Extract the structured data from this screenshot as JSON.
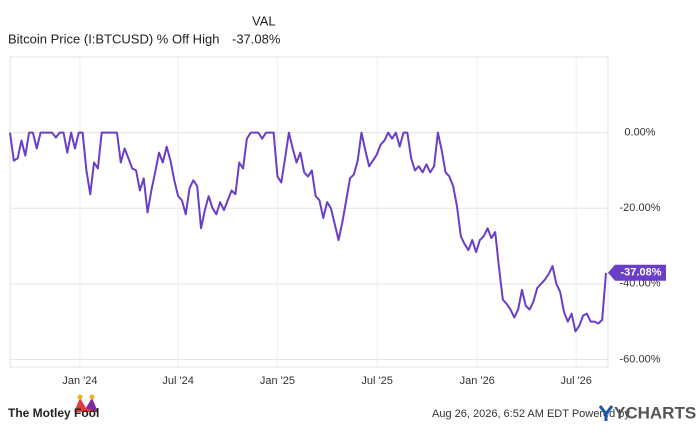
{
  "legend": {
    "header": "VAL",
    "value": "-37.08%"
  },
  "footer": {
    "brand": "The Motley Fool",
    "timestamp": "Aug 26, 2026, 6:52 AM EDT Powered by",
    "source": "YCHARTS"
  },
  "chart_data": {
    "type": "line",
    "xlim": [
      0,
      156
    ],
    "xticks": [
      {
        "value": 18.3,
        "label": "Jan '24"
      },
      {
        "value": 44,
        "label": "Jul '24"
      },
      {
        "value": 70,
        "label": "Jan '25"
      },
      {
        "value": 96.1,
        "label": "Jul '25"
      },
      {
        "value": 122.3,
        "label": "Jan '26"
      },
      {
        "value": 148.2,
        "label": "Jul '26"
      }
    ],
    "ylim": [
      -62,
      20
    ],
    "yticks": [
      {
        "value": 0,
        "label": "0.00%"
      },
      {
        "value": -20,
        "label": "-20.00%"
      },
      {
        "value": -40,
        "label": "-40.00%"
      },
      {
        "value": -60,
        "label": "-60.00%"
      }
    ],
    "grid": true,
    "series": [
      {
        "name": "Bitcoin Price (I:BTCUSD) % Off High",
        "color": "#6a3ec8",
        "end_label": "-37.08%",
        "values": [
          0,
          -7.4,
          -6.8,
          -2.1,
          -6.1,
          0,
          0,
          -4.2,
          0,
          0,
          0,
          0,
          -1.3,
          0,
          0,
          -5.3,
          0,
          -4.2,
          0,
          0,
          -10,
          -16.3,
          -7.9,
          -9.5,
          0,
          0,
          0,
          0,
          0,
          -7.9,
          -4.2,
          -6.8,
          -9.5,
          -10,
          -15.3,
          -12.1,
          -21.1,
          -15.3,
          -10.5,
          -5.3,
          -7.9,
          -3.7,
          -7.4,
          -12.6,
          -16.8,
          -17.9,
          -21.6,
          -14.7,
          -12.6,
          -14.2,
          -25.3,
          -20.5,
          -16.8,
          -20,
          -21.6,
          -18.4,
          -20.5,
          -17.9,
          -15.3,
          -16.3,
          -7.9,
          -9.5,
          -1.6,
          0,
          0,
          0,
          -1.6,
          0,
          0,
          0,
          -11.6,
          -13.2,
          -6.8,
          0,
          -4.2,
          -7.9,
          -5.3,
          -10.5,
          -11.6,
          -10,
          -16.8,
          -17.9,
          -22.6,
          -18.4,
          -20,
          -24.2,
          -28.4,
          -23.7,
          -17.9,
          -12.1,
          -11.1,
          -7.4,
          0,
          -4.7,
          -8.9,
          -7.4,
          -5.8,
          -3.2,
          -2.1,
          0,
          -1.6,
          0,
          -3.7,
          0,
          0,
          -6.8,
          -10,
          -8.9,
          -10.5,
          -8.4,
          -10.5,
          -8.9,
          0,
          -4.7,
          -10.5,
          -11.6,
          -14.2,
          -19.5,
          -27.4,
          -29.5,
          -31.1,
          -28.4,
          -31.6,
          -28.4,
          -27.4,
          -25.3,
          -27.9,
          -26.3,
          -35.8,
          -44.2,
          -45.3,
          -46.8,
          -48.9,
          -46.8,
          -41.6,
          -45.8,
          -46.8,
          -44.7,
          -41.1,
          -40,
          -38.9,
          -37.4,
          -35.3,
          -40,
          -42.1,
          -47.4,
          -50,
          -47.9,
          -52.6,
          -51.1,
          -48.4,
          -47.9,
          -50,
          -50,
          -50.5,
          -49.5,
          -37.08
        ]
      }
    ]
  }
}
